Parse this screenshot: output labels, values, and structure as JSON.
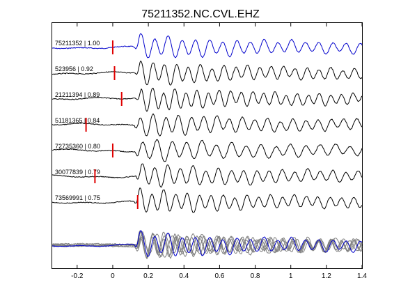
{
  "chart_data": {
    "type": "line",
    "title": "75211352.NC.CVL.EHZ",
    "xlabel": "",
    "ylabel": "",
    "xlim": [
      -0.34,
      1.4
    ],
    "grid": false,
    "xticks": [
      -0.2,
      0,
      0.2,
      0.4,
      0.6,
      0.8,
      1,
      1.2,
      1.4
    ],
    "xtick_labels": [
      "-0.2",
      "0",
      "0.2",
      "0.4",
      "0.6",
      "0.8",
      "1",
      "1.2",
      "1.4"
    ],
    "colors": {
      "reference": "#0000cc",
      "trace": "#000000",
      "stack": "#808080",
      "pick": "#e00000"
    },
    "traces": [
      {
        "label": "75211352 | 1.00",
        "event_id": "75211352",
        "correlation": 1.0,
        "pick_time": 0.0,
        "reference": true
      },
      {
        "label": "523956 | 0.92",
        "event_id": "523956",
        "correlation": 0.92,
        "pick_time": 0.01,
        "reference": false
      },
      {
        "label": "21211394 | 0.89",
        "event_id": "21211394",
        "correlation": 0.89,
        "pick_time": 0.05,
        "reference": false
      },
      {
        "label": "51181365 | 0.84",
        "event_id": "51181365",
        "correlation": 0.84,
        "pick_time": -0.15,
        "reference": false
      },
      {
        "label": "72735360 | 0.80",
        "event_id": "72735360",
        "correlation": 0.8,
        "pick_time": 0.0,
        "reference": false
      },
      {
        "label": "30077839 | 0.79",
        "event_id": "30077839",
        "correlation": 0.79,
        "pick_time": -0.1,
        "reference": false
      },
      {
        "label": "73569991 | 0.75",
        "event_id": "73569991",
        "correlation": 0.75,
        "pick_time": 0.14,
        "reference": false
      }
    ],
    "stack_overlay": {
      "trace_count": 7,
      "includes_reference": true
    }
  }
}
